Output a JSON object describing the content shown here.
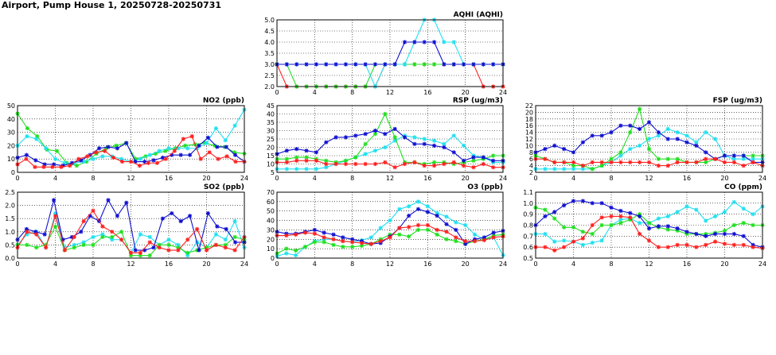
{
  "page": {
    "title": "Airport, Pump House 1, 20250728-20250731"
  },
  "series_colors": {
    "red": "#ff2020",
    "green": "#20e020",
    "blue": "#1010d0",
    "cyan": "#20e0f0"
  },
  "chart_data": [
    {
      "id": "aqhi",
      "type": "line",
      "title": "AQHI (AQHI)",
      "xlim": [
        0,
        24
      ],
      "ylim": [
        2.0,
        5.0
      ],
      "xticks": [
        "0",
        "4",
        "8",
        "12",
        "16",
        "20",
        "24"
      ],
      "yticks": [
        "2.0",
        "2.5",
        "3.0",
        "3.5",
        "4.0",
        "4.5",
        "5.0"
      ],
      "grid": true,
      "series": [
        {
          "color": "red",
          "values": [
            3,
            2,
            2,
            2,
            2,
            2,
            2,
            2,
            2,
            2,
            2,
            3,
            3,
            3,
            3,
            3,
            3,
            3,
            3,
            3,
            3,
            2,
            2,
            2
          ]
        },
        {
          "color": "green",
          "values": [
            3,
            3,
            2,
            2,
            2,
            2,
            2,
            2,
            2,
            2,
            3,
            3,
            3,
            3,
            3,
            3,
            3,
            3,
            3,
            3,
            3,
            3,
            3,
            3
          ]
        },
        {
          "color": "cyan",
          "values": [
            3,
            3,
            3,
            3,
            3,
            3,
            3,
            3,
            3,
            3,
            2,
            3,
            3,
            3,
            4,
            5,
            5,
            4,
            4,
            3,
            3,
            3,
            3,
            3
          ]
        },
        {
          "color": "blue",
          "values": [
            3,
            3,
            3,
            3,
            3,
            3,
            3,
            3,
            3,
            3,
            3,
            3,
            3,
            4,
            4,
            4,
            4,
            3,
            3,
            3,
            3,
            3,
            3,
            3
          ]
        }
      ]
    },
    {
      "id": "no2",
      "type": "line",
      "title": "NO2 (ppb)",
      "xlim": [
        0,
        24
      ],
      "ylim": [
        0,
        50
      ],
      "xticks": [
        "0",
        "4",
        "8",
        "12",
        "16",
        "20",
        "24"
      ],
      "yticks": [
        "0",
        "10",
        "20",
        "30",
        "40",
        "50"
      ],
      "grid": true,
      "series": [
        {
          "color": "green",
          "values": [
            44,
            33,
            27,
            17,
            16,
            7,
            5,
            8,
            14,
            18,
            20,
            22,
            10,
            12,
            14,
            16,
            18,
            20,
            21,
            22,
            20,
            19,
            15,
            14
          ]
        },
        {
          "color": "cyan",
          "values": [
            20,
            27,
            25,
            18,
            10,
            7,
            7,
            8,
            10,
            12,
            12,
            10,
            8,
            10,
            13,
            16,
            18,
            18,
            18,
            18,
            22,
            33,
            24,
            35,
            47
          ]
        },
        {
          "color": "blue",
          "values": [
            11,
            13,
            9,
            6,
            6,
            5,
            7,
            9,
            13,
            18,
            19,
            18,
            22,
            8,
            8,
            9,
            11,
            13,
            13,
            13,
            20,
            26,
            19,
            19,
            13,
            8
          ]
        },
        {
          "color": "red",
          "values": [
            6,
            10,
            4,
            4,
            4,
            4,
            5,
            10,
            12,
            15,
            16,
            11,
            8,
            8,
            5,
            7,
            7,
            10,
            16,
            25,
            27,
            10,
            15,
            10,
            12,
            8,
            8
          ]
        }
      ]
    },
    {
      "id": "rsp",
      "type": "line",
      "title": "RSP (ug/m3)",
      "xlim": [
        0,
        24
      ],
      "ylim": [
        5,
        45
      ],
      "xticks": [
        "0",
        "4",
        "8",
        "12",
        "16",
        "20",
        "24"
      ],
      "yticks": [
        "5",
        "10",
        "15",
        "20",
        "25",
        "30",
        "35",
        "40",
        "45"
      ],
      "grid": true,
      "series": [
        {
          "color": "cyan",
          "values": [
            7,
            7,
            7,
            7,
            7,
            8,
            10,
            12,
            14,
            16,
            18,
            20,
            24,
            27,
            26,
            25,
            24,
            22,
            27,
            21,
            15,
            14,
            11,
            11
          ]
        },
        {
          "color": "green",
          "values": [
            13,
            13,
            14,
            14,
            13,
            12,
            11,
            12,
            14,
            22,
            28,
            40,
            26,
            11,
            11,
            10,
            11,
            11,
            10,
            11,
            12,
            13,
            15,
            15
          ]
        },
        {
          "color": "blue",
          "values": [
            16,
            18,
            19,
            18,
            17,
            23,
            26,
            26,
            27,
            28,
            30,
            28,
            31,
            26,
            22,
            22,
            21,
            20,
            17,
            12,
            14,
            14,
            12,
            12
          ]
        },
        {
          "color": "red",
          "values": [
            11,
            11,
            12,
            12,
            12,
            10,
            10,
            10,
            10,
            10,
            10,
            11,
            8,
            10,
            11,
            9,
            9,
            10,
            11,
            9,
            8,
            10,
            8,
            8
          ]
        }
      ]
    },
    {
      "id": "fsp",
      "type": "line",
      "title": "FSP (ug/m3)",
      "xlim": [
        0,
        24
      ],
      "ylim": [
        2,
        22
      ],
      "xticks": [
        "0",
        "4",
        "8",
        "12",
        "16",
        "20",
        "24"
      ],
      "yticks": [
        "2",
        "4",
        "6",
        "8",
        "10",
        "12",
        "14",
        "16",
        "18",
        "20",
        "22"
      ],
      "grid": true,
      "series": [
        {
          "color": "cyan",
          "values": [
            3,
            3,
            3,
            3,
            3,
            3,
            3,
            4,
            5,
            7,
            9,
            10,
            12,
            13,
            15,
            14,
            13,
            11,
            14,
            12,
            7,
            6,
            6,
            6,
            6
          ]
        },
        {
          "color": "green",
          "values": [
            7,
            6,
            5,
            5,
            4,
            4,
            3,
            4,
            6,
            8,
            14,
            21,
            9,
            6,
            6,
            6,
            5,
            5,
            5,
            6,
            7,
            7,
            7,
            7,
            7
          ]
        },
        {
          "color": "blue",
          "values": [
            8,
            9,
            10,
            9,
            8,
            11,
            13,
            13,
            14,
            16,
            16,
            15,
            17,
            14,
            12,
            12,
            11,
            10,
            8,
            6,
            7,
            7,
            7,
            5,
            5
          ]
        },
        {
          "color": "red",
          "values": [
            6,
            6,
            5,
            5,
            5,
            4,
            5,
            5,
            5,
            5,
            5,
            5,
            5,
            4,
            4,
            5,
            5,
            5,
            6,
            6,
            5,
            5,
            4,
            5,
            4
          ]
        }
      ]
    },
    {
      "id": "so2",
      "type": "line",
      "title": "SO2 (ppb)",
      "xlim": [
        0,
        24
      ],
      "ylim": [
        0,
        2.5
      ],
      "xticks": [
        "0",
        "4",
        "8",
        "12",
        "16",
        "20",
        "24"
      ],
      "yticks": [
        "0.0",
        "0.5",
        "1.0",
        "1.5",
        "2.0",
        "2.5"
      ],
      "grid": true,
      "series": [
        {
          "color": "cyan",
          "values": [
            0.5,
            0.9,
            1.0,
            0.4,
            1.7,
            0.4,
            0.5,
            0.6,
            0.8,
            0.9,
            0.7,
            0.7,
            0.2,
            0.9,
            0.8,
            0.5,
            0.7,
            0.5,
            0.1,
            0.6,
            0.4,
            0.9,
            0.7,
            1.4,
            0.4
          ]
        },
        {
          "color": "green",
          "values": [
            0.5,
            0.5,
            0.4,
            0.5,
            1.2,
            0.3,
            0.4,
            0.5,
            0.5,
            0.8,
            0.8,
            1.0,
            0.1,
            0.1,
            0.1,
            0.5,
            0.5,
            0.4,
            0.2,
            0.3,
            0.4,
            0.5,
            0.5,
            0.8,
            0.7
          ]
        },
        {
          "color": "blue",
          "values": [
            0.7,
            1.1,
            1.0,
            0.9,
            2.2,
            0.7,
            0.8,
            1.0,
            1.6,
            1.4,
            2.2,
            1.6,
            2.1,
            0.3,
            0.3,
            0.4,
            1.5,
            1.7,
            1.4,
            1.6,
            0.3,
            1.7,
            1.2,
            1.1,
            0.6,
            0.6
          ]
        },
        {
          "color": "red",
          "values": [
            0.4,
            1.0,
            0.9,
            0.4,
            1.6,
            0.3,
            0.8,
            1.4,
            1.8,
            1.2,
            1.0,
            0.7,
            0.2,
            0.2,
            0.6,
            0.4,
            0.3,
            0.3,
            0.7,
            1.1,
            0.3,
            0.5,
            0.4,
            0.3,
            0.8
          ]
        }
      ]
    },
    {
      "id": "o3",
      "type": "line",
      "title": "O3 (ppb)",
      "xlim": [
        0,
        24
      ],
      "ylim": [
        0,
        70
      ],
      "xticks": [
        "0",
        "4",
        "8",
        "12",
        "16",
        "20",
        "24"
      ],
      "yticks": [
        "0",
        "10",
        "20",
        "30",
        "40",
        "50",
        "60",
        "70"
      ],
      "grid": true,
      "series": [
        {
          "color": "cyan",
          "values": [
            2,
            5,
            3,
            12,
            18,
            20,
            20,
            18,
            17,
            19,
            22,
            32,
            40,
            52,
            55,
            60,
            55,
            48,
            44,
            38,
            35,
            25,
            20,
            22,
            3
          ]
        },
        {
          "color": "green",
          "values": [
            5,
            10,
            8,
            12,
            17,
            17,
            14,
            12,
            12,
            13,
            15,
            20,
            25,
            25,
            23,
            30,
            30,
            25,
            20,
            18,
            15,
            18,
            20,
            24,
            25
          ]
        },
        {
          "color": "blue",
          "values": [
            28,
            26,
            26,
            28,
            30,
            27,
            25,
            22,
            20,
            18,
            15,
            16,
            23,
            32,
            45,
            52,
            49,
            45,
            36,
            30,
            15,
            20,
            22,
            27,
            29
          ]
        },
        {
          "color": "red",
          "values": [
            24,
            24,
            25,
            27,
            26,
            22,
            20,
            18,
            17,
            16,
            15,
            18,
            22,
            32,
            33,
            35,
            35,
            30,
            28,
            22,
            18,
            18,
            19,
            22,
            23
          ]
        }
      ]
    },
    {
      "id": "co",
      "type": "line",
      "title": "CO (ppm)",
      "xlim": [
        0,
        24
      ],
      "ylim": [
        0.5,
        1.1
      ],
      "xticks": [
        "0",
        "4",
        "8",
        "12",
        "16",
        "20",
        "24"
      ],
      "yticks": [
        "0.5",
        "0.6",
        "0.7",
        "0.8",
        "0.9",
        "1.0",
        "1.1"
      ],
      "grid": true,
      "series": [
        {
          "color": "cyan",
          "values": [
            0.72,
            0.72,
            0.65,
            0.66,
            0.65,
            0.62,
            0.64,
            0.66,
            0.8,
            0.85,
            0.86,
            0.82,
            0.82,
            0.86,
            0.88,
            0.92,
            0.97,
            0.94,
            0.84,
            0.88,
            0.92,
            1.01,
            0.95,
            0.9,
            0.97
          ]
        },
        {
          "color": "green",
          "values": [
            0.96,
            0.94,
            0.86,
            0.78,
            0.78,
            0.74,
            0.72,
            0.8,
            0.8,
            0.82,
            0.85,
            0.9,
            0.82,
            0.78,
            0.76,
            0.75,
            0.72,
            0.72,
            0.72,
            0.73,
            0.75,
            0.8,
            0.82,
            0.8,
            0.8
          ]
        },
        {
          "color": "blue",
          "values": [
            0.8,
            0.88,
            0.92,
            0.98,
            1.02,
            1.02,
            1.0,
            1.0,
            0.96,
            0.93,
            0.91,
            0.88,
            0.77,
            0.79,
            0.79,
            0.77,
            0.74,
            0.72,
            0.7,
            0.72,
            0.72,
            0.72,
            0.7,
            0.62,
            0.6
          ]
        },
        {
          "color": "red",
          "values": [
            0.6,
            0.6,
            0.57,
            0.6,
            0.65,
            0.68,
            0.8,
            0.87,
            0.88,
            0.88,
            0.87,
            0.72,
            0.66,
            0.6,
            0.6,
            0.62,
            0.62,
            0.6,
            0.62,
            0.65,
            0.63,
            0.62,
            0.62,
            0.6,
            0.59
          ]
        }
      ]
    }
  ]
}
